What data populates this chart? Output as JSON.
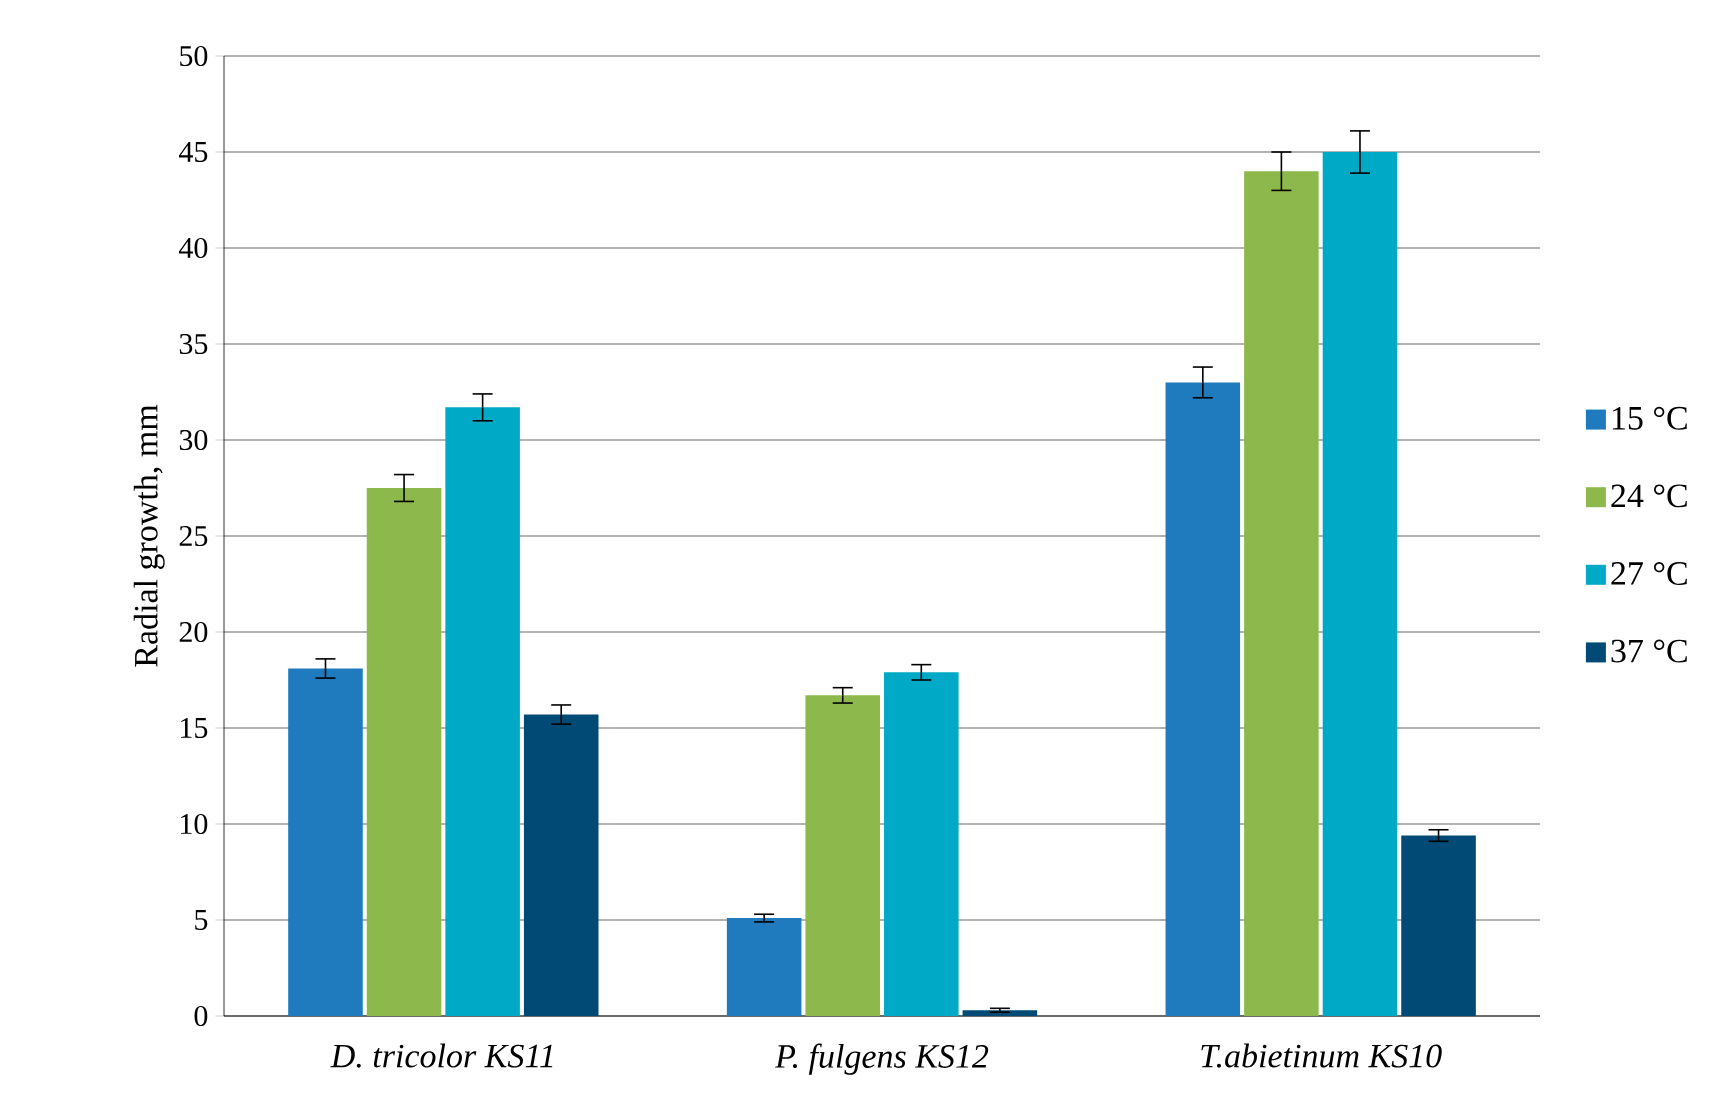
{
  "chart_data": {
    "type": "bar",
    "ylabel": "Radial growth, mm",
    "categories": [
      "D. tricolor KS11",
      "P. fulgens KS12",
      "T.abietinum KS10"
    ],
    "series": [
      {
        "name": "15 °C",
        "color": "#1f7bbd",
        "values": [
          18.1,
          5.1,
          33.0
        ],
        "errors": [
          0.5,
          0.2,
          0.8
        ]
      },
      {
        "name": "24 °C",
        "color": "#8db94c",
        "values": [
          27.5,
          16.7,
          44.0
        ],
        "errors": [
          0.7,
          0.4,
          1.0
        ]
      },
      {
        "name": "27 °C",
        "color": "#00aac6",
        "values": [
          31.7,
          17.9,
          45.0
        ],
        "errors": [
          0.7,
          0.4,
          1.1
        ]
      },
      {
        "name": "37 °C",
        "color": "#004a75",
        "values": [
          15.7,
          0.3,
          9.4
        ],
        "errors": [
          0.5,
          0.1,
          0.3
        ]
      }
    ],
    "ylim": [
      0,
      50
    ],
    "yticks": [
      0,
      5,
      10,
      15,
      20,
      25,
      30,
      35,
      40,
      45,
      50
    ],
    "grid": "y",
    "legend": "right"
  }
}
